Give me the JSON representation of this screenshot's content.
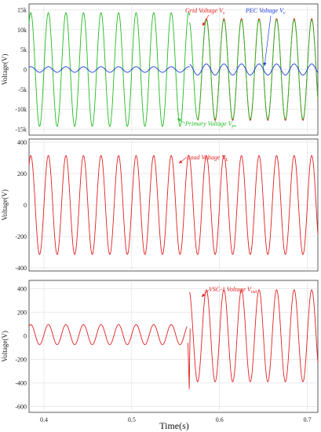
{
  "chart_data": [
    {
      "type": "line",
      "ylabel": "Voltage(V)",
      "xlim": [
        0.383,
        0.712
      ],
      "ylim": [
        -16500,
        16500
      ],
      "yticks": [
        15000,
        10000,
        5000,
        0,
        -5000,
        -10000,
        -15000
      ],
      "ytick_labels": [
        "15k",
        "10k",
        "5k",
        "0",
        "-5k",
        "-10k",
        "-15k"
      ],
      "grid": true,
      "series": [
        {
          "name": "Grid Voltage V_s",
          "color": "#e02020",
          "frequency_hz": 50,
          "segments": [
            {
              "x": [
                0.575,
                0.712
              ],
              "amplitude": 12800
            }
          ]
        },
        {
          "name": "Primary Voltage V_pv",
          "color": "#22bb22",
          "frequency_hz": 50,
          "segments": [
            {
              "x": [
                0.383,
                0.566
              ],
              "amplitude": 14300
            },
            {
              "x": [
                0.566,
                0.712
              ],
              "amplitude": 12500
            }
          ]
        },
        {
          "name": "PEC Voltage V_c",
          "color": "#1a3adb",
          "frequency_hz": 50,
          "segments": [
            {
              "x": [
                0.383,
                0.566
              ],
              "amplitude": 700
            },
            {
              "x": [
                0.566,
                0.712
              ],
              "amplitude": 1400
            }
          ]
        }
      ],
      "annotations": [
        {
          "main": "Grid Voltage V",
          "sub": "s",
          "color": "#e02020"
        },
        {
          "main": "PEC Voltage V",
          "sub": "c",
          "color": "#1a3adb"
        },
        {
          "main": "Primary Voltage V",
          "sub": "pv",
          "color": "#22bb22"
        }
      ]
    },
    {
      "type": "line",
      "ylabel": "Voltage(V)",
      "xlim": [
        0.383,
        0.712
      ],
      "ylim": [
        -420,
        420
      ],
      "yticks": [
        400,
        200,
        0,
        -200,
        -400
      ],
      "ytick_labels": [
        "400",
        "200",
        "0",
        "-200",
        "-400"
      ],
      "grid": true,
      "series": [
        {
          "name": "Load Voltage V_L",
          "color": "#e02020",
          "frequency_hz": 50,
          "segments": [
            {
              "x": [
                0.383,
                0.712
              ],
              "amplitude": 315
            }
          ]
        }
      ],
      "annotations": [
        {
          "main": "Load Voltage V",
          "sub": "L",
          "color": "#e02020"
        }
      ]
    },
    {
      "type": "line",
      "ylabel": "Voltage(V)",
      "xlabel": "Time(s)",
      "xlim": [
        0.383,
        0.712
      ],
      "ylim": [
        -650,
        470
      ],
      "yticks": [
        400,
        200,
        0,
        -200,
        -400,
        -600
      ],
      "ytick_labels": [
        "400",
        "200",
        "0",
        "-200",
        "-400",
        "-600"
      ],
      "xticks": [
        0.4,
        0.5,
        0.6,
        0.7
      ],
      "xtick_labels": [
        "0.4",
        "0.5",
        "0.6",
        "0.7"
      ],
      "grid": true,
      "series": [
        {
          "name": "VSC-1 Voltage V_out",
          "color": "#e02020",
          "frequency_hz": 50,
          "segments": [
            {
              "x": [
                0.383,
                0.563
              ],
              "amplitude": 85,
              "offset": 10
            },
            {
              "x": [
                0.566,
                0.712
              ],
              "amplitude": 390
            }
          ],
          "transient": {
            "x": 0.5655,
            "min": -450
          }
        }
      ],
      "annotations": [
        {
          "main": "VSC-1 Voltage V",
          "sub": "out",
          "color": "#e02020"
        }
      ]
    }
  ]
}
